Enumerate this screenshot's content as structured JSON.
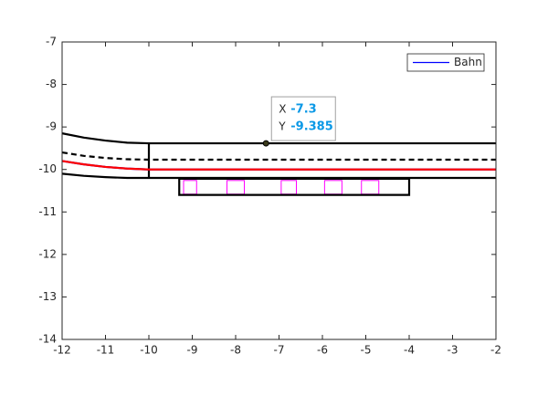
{
  "chart_data": {
    "type": "line",
    "xlim": [
      -12,
      -2
    ],
    "xticks": [
      -12,
      -11,
      -10,
      -9,
      -8,
      -7,
      -6,
      -5,
      -4,
      -3,
      -2
    ],
    "ylim": [
      -14,
      -7
    ],
    "yticks": [
      -14,
      -13,
      -12,
      -11,
      -10,
      -9,
      -8,
      -7
    ],
    "legend_position": "northeast",
    "series": [
      {
        "color": "#000000",
        "x": [
          -12,
          -11.5,
          -11,
          -10.5,
          -10,
          -2
        ],
        "values": [
          -9.15,
          -9.25,
          -9.32,
          -9.37,
          -9.385,
          -9.385
        ]
      },
      {
        "color": "#000000",
        "style": "dashed",
        "x": [
          -12,
          -11.5,
          -11,
          -10.5,
          -10,
          -2
        ],
        "values": [
          -9.6,
          -9.68,
          -9.73,
          -9.76,
          -9.77,
          -9.77
        ]
      },
      {
        "color": "#000000",
        "x": [
          -12,
          -11.5,
          -11,
          -10.5,
          -10,
          -2
        ],
        "values": [
          -10.1,
          -10.15,
          -10.18,
          -10.2,
          -10.2,
          -10.2
        ]
      },
      {
        "color": "#000000",
        "x": [
          -10,
          -10
        ],
        "values": [
          -9.385,
          -10.2
        ]
      },
      {
        "color": "#000000",
        "x": [
          -9.3,
          -4,
          -4,
          -9.3,
          -9.3
        ],
        "values": [
          -10.22,
          -10.22,
          -10.6,
          -10.6,
          -10.22
        ]
      },
      {
        "name": "Bahn",
        "color": "#0000ff",
        "x": [
          -12,
          -11.5,
          -11,
          -10.5,
          -10,
          -2
        ],
        "values": [
          -9.8,
          -9.88,
          -9.94,
          -9.98,
          -10,
          -10
        ]
      },
      {
        "color": "#ff0000",
        "x": [
          -12,
          -11.5,
          -11,
          -10.5,
          -10,
          -2
        ],
        "values": [
          -9.8,
          -9.88,
          -9.94,
          -9.98,
          -10,
          -10
        ]
      }
    ],
    "rects_color": "#ff00ff",
    "rects": [
      {
        "x": -9.2,
        "y": -10.26,
        "w": 0.3,
        "h": 0.32
      },
      {
        "x": -8.2,
        "y": -10.26,
        "w": 0.4,
        "h": 0.32
      },
      {
        "x": -6.95,
        "y": -10.26,
        "w": 0.35,
        "h": 0.32
      },
      {
        "x": -5.95,
        "y": -10.26,
        "w": 0.4,
        "h": 0.32
      },
      {
        "x": -5.1,
        "y": -10.26,
        "w": 0.4,
        "h": 0.32
      }
    ],
    "datatip": {
      "x_label": "X",
      "x": -7.3,
      "y_label": "Y",
      "y": -9.385
    }
  }
}
